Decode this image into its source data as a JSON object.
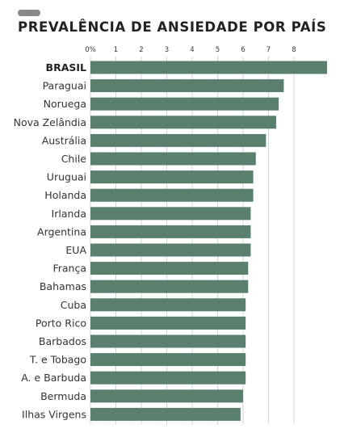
{
  "chart_data": {
    "type": "bar",
    "orientation": "horizontal",
    "title": "PREVALÊNCIA DE ANSIEDADE POR PAÍS",
    "xlabel": "",
    "ylabel": "",
    "xlim": [
      0,
      9
    ],
    "ticks": [
      {
        "value": 0,
        "label": "0%"
      },
      {
        "value": 1,
        "label": "1"
      },
      {
        "value": 2,
        "label": "2"
      },
      {
        "value": 3,
        "label": "3"
      },
      {
        "value": 4,
        "label": "4"
      },
      {
        "value": 5,
        "label": "5"
      },
      {
        "value": 6,
        "label": "6"
      },
      {
        "value": 7,
        "label": "7"
      },
      {
        "value": 8,
        "label": "8"
      }
    ],
    "grid": true,
    "bar_color": "#5a7f6f",
    "highlight": "BRASIL",
    "categories": [
      "BRASIL",
      "Paraguai",
      "Noruega",
      "Nova Zelândia",
      "Austrália",
      "Chile",
      "Uruguai",
      "Holanda",
      "Irlanda",
      "Argentina",
      "EUA",
      "França",
      "Bahamas",
      "Cuba",
      "Porto Rico",
      "Barbados",
      "T. e Tobago",
      "A. e Barbuda",
      "Bermuda",
      "Ilhas Virgens"
    ],
    "values": [
      9.3,
      7.6,
      7.4,
      7.3,
      6.9,
      6.5,
      6.4,
      6.4,
      6.3,
      6.3,
      6.3,
      6.2,
      6.2,
      6.1,
      6.1,
      6.1,
      6.1,
      6.1,
      6.0,
      5.9
    ]
  }
}
